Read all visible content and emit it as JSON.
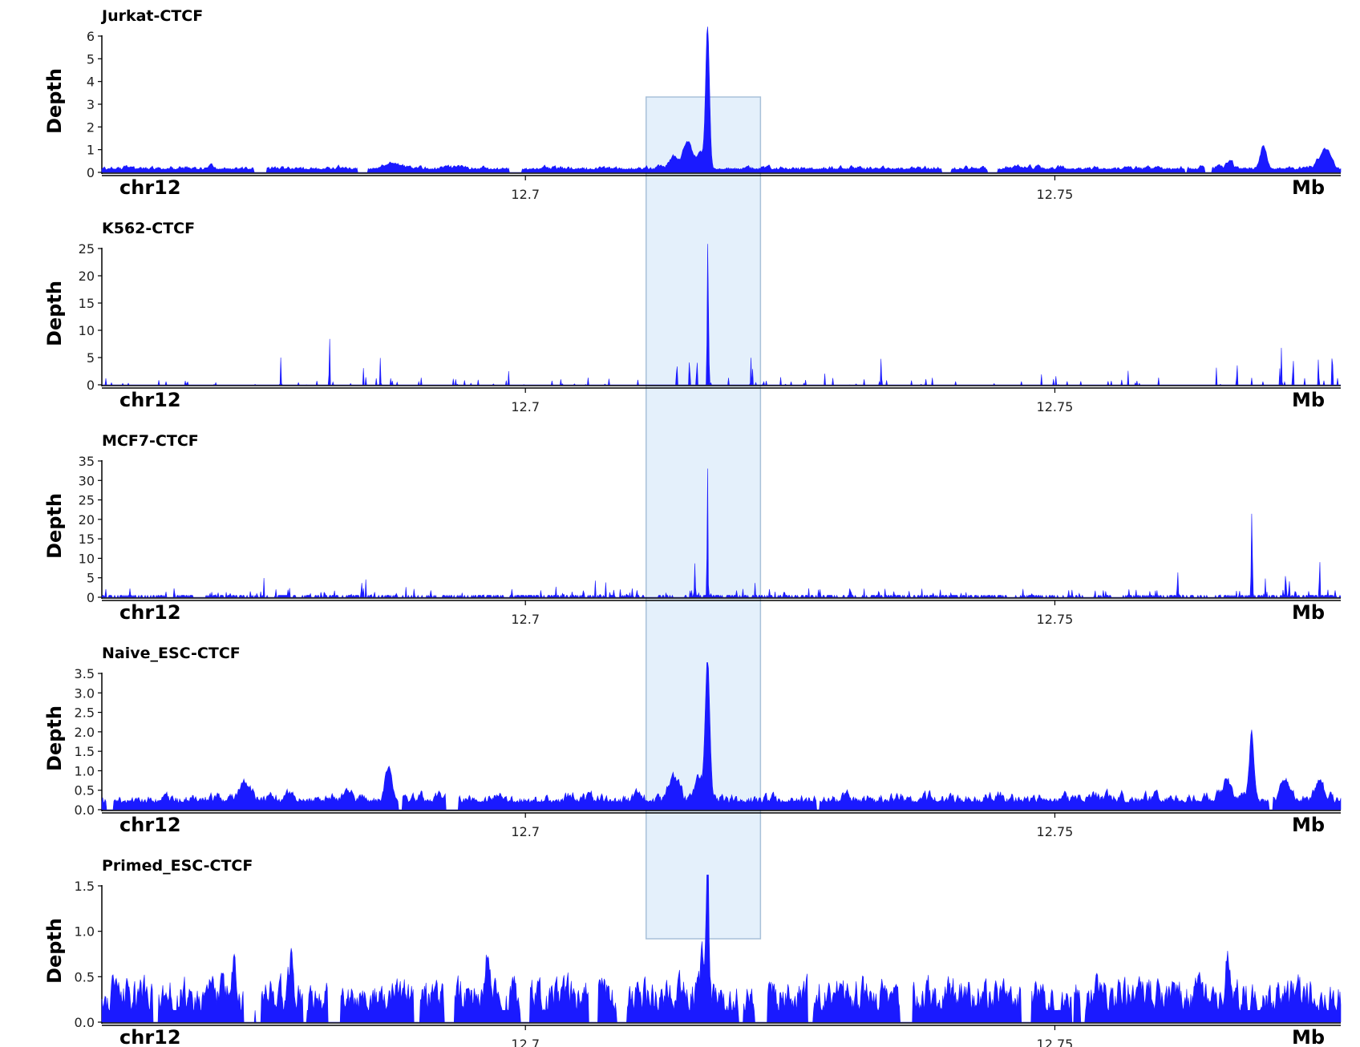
{
  "chart_data": {
    "type": "area",
    "region": {
      "chrom_label": "chr12",
      "unit_label": "Mb",
      "xlim": [
        12.66,
        12.777
      ],
      "xticks": [
        12.7,
        12.75
      ],
      "xtick_labels": [
        "12.7",
        "12.75"
      ]
    },
    "highlight": {
      "start": 12.7114,
      "end": 12.7222,
      "color": "#e4f0fb",
      "border": "#a9c1d9"
    },
    "series_color": "#1a1aff",
    "tracks": [
      {
        "title": "Jurkat-CTCF",
        "ylabel": "Depth",
        "ylim": [
          0,
          6
        ],
        "yticks": [
          0,
          1,
          2,
          3,
          4,
          5,
          6
        ],
        "ytick_labels": [
          "0",
          "1",
          "2",
          "3",
          "4",
          "5",
          "6"
        ],
        "style": "smooth",
        "baseline": 0.12,
        "noise": 0.07,
        "gap_prob": 0.1,
        "peaks": [
          {
            "x": 12.7172,
            "h": 6.25,
            "w": 0.00018
          },
          {
            "x": 12.7153,
            "h": 1.2,
            "w": 0.0004
          },
          {
            "x": 12.7165,
            "h": 0.75,
            "w": 0.0003
          },
          {
            "x": 12.714,
            "h": 0.55,
            "w": 0.0004
          },
          {
            "x": 12.7697,
            "h": 1.0,
            "w": 0.0003
          },
          {
            "x": 12.7755,
            "h": 0.85,
            "w": 0.0005
          },
          {
            "x": 12.7665,
            "h": 0.35,
            "w": 0.0003
          },
          {
            "x": 12.6875,
            "h": 0.25,
            "w": 0.0008
          }
        ]
      },
      {
        "title": "K562-CTCF",
        "ylabel": "Depth",
        "ylim": [
          0,
          25
        ],
        "yticks": [
          0,
          5,
          10,
          15,
          20,
          25
        ],
        "ytick_labels": [
          "0",
          "5",
          "10",
          "15",
          "20",
          "25"
        ],
        "style": "spiky",
        "baseline": 0.0,
        "noise": 1.4,
        "gap_prob": 0.55,
        "peaks": [
          {
            "x": 12.7172,
            "h": 25.8,
            "w": 4e-05
          },
          {
            "x": 12.7173,
            "h": 13,
            "w": 4e-05
          },
          {
            "x": 12.6815,
            "h": 10,
            "w": 3e-05
          },
          {
            "x": 12.7762,
            "h": 9,
            "w": 3e-05
          },
          {
            "x": 12.7143,
            "h": 6,
            "w": 3e-05
          },
          {
            "x": 12.7155,
            "h": 7,
            "w": 3e-05
          },
          {
            "x": 12.7162,
            "h": 6,
            "w": 3e-05
          },
          {
            "x": 12.7749,
            "h": 6,
            "w": 3e-05
          },
          {
            "x": 12.7336,
            "h": 6,
            "w": 3e-05
          },
          {
            "x": 12.7714,
            "h": 7,
            "w": 3e-05
          },
          {
            "x": 12.7725,
            "h": 7,
            "w": 3e-05
          },
          {
            "x": 12.6769,
            "h": 5,
            "w": 3e-05
          },
          {
            "x": 12.6863,
            "h": 5,
            "w": 3e-05
          },
          {
            "x": 12.7213,
            "h": 5,
            "w": 3e-05
          },
          {
            "x": 12.7672,
            "h": 5,
            "w": 3e-05
          }
        ]
      },
      {
        "title": "MCF7-CTCF",
        "ylabel": "Depth",
        "ylim": [
          0,
          35
        ],
        "yticks": [
          0,
          5,
          10,
          15,
          20,
          25,
          30,
          35
        ],
        "ytick_labels": [
          "0",
          "5",
          "10",
          "15",
          "20",
          "25",
          "30",
          "35"
        ],
        "style": "spiky",
        "baseline": 0.5,
        "noise": 1.8,
        "gap_prob": 0.2,
        "peaks": [
          {
            "x": 12.7172,
            "h": 34,
            "w": 4e-05
          },
          {
            "x": 12.7686,
            "h": 22,
            "w": 5e-05
          },
          {
            "x": 12.716,
            "h": 8,
            "w": 4e-05
          },
          {
            "x": 12.7718,
            "h": 7,
            "w": 4e-05
          },
          {
            "x": 12.7616,
            "h": 7,
            "w": 4e-05
          },
          {
            "x": 12.775,
            "h": 6,
            "w": 4e-05
          }
        ]
      },
      {
        "title": "Naive_ESC-CTCF",
        "ylabel": "Depth",
        "ylim": [
          0,
          3.5
        ],
        "yticks": [
          0,
          0.5,
          1,
          1.5,
          2,
          2.5,
          3,
          3.5
        ],
        "ytick_labels": [
          "0.0",
          "0.5",
          "1.0",
          "1.5",
          "2.0",
          "2.5",
          "3.0",
          "3.5"
        ],
        "style": "smooth",
        "baseline": 0.18,
        "noise": 0.1,
        "gap_prob": 0.07,
        "peaks": [
          {
            "x": 12.7172,
            "h": 3.55,
            "w": 0.00022
          },
          {
            "x": 12.6871,
            "h": 0.9,
            "w": 0.0003
          },
          {
            "x": 12.7686,
            "h": 1.6,
            "w": 0.00022
          },
          {
            "x": 12.714,
            "h": 0.6,
            "w": 0.0005
          },
          {
            "x": 12.7163,
            "h": 0.5,
            "w": 0.0004
          },
          {
            "x": 12.6734,
            "h": 0.4,
            "w": 0.0005
          },
          {
            "x": 12.7663,
            "h": 0.5,
            "w": 0.0004
          },
          {
            "x": 12.7718,
            "h": 0.55,
            "w": 0.0004
          },
          {
            "x": 12.775,
            "h": 0.55,
            "w": 0.0004
          }
        ]
      },
      {
        "title": "Primed_ESC-CTCF",
        "ylabel": "Depth",
        "ylim": [
          0,
          1.5
        ],
        "yticks": [
          0,
          0.5,
          1,
          1.5
        ],
        "ytick_labels": [
          "0.0",
          "0.5",
          "1.0",
          "1.5"
        ],
        "style": "blocky",
        "baseline": 0.13,
        "noise": 0.12,
        "gap_prob": 0.3,
        "peaks": [
          {
            "x": 12.7172,
            "h": 1.85,
            "w": 0.00012
          },
          {
            "x": 12.6965,
            "h": 0.5,
            "w": 0.0002
          },
          {
            "x": 12.6779,
            "h": 0.45,
            "w": 0.0002
          },
          {
            "x": 12.6725,
            "h": 0.45,
            "w": 0.0002
          },
          {
            "x": 12.7167,
            "h": 0.5,
            "w": 0.00015
          },
          {
            "x": 12.7663,
            "h": 0.45,
            "w": 0.0002
          }
        ]
      }
    ]
  }
}
